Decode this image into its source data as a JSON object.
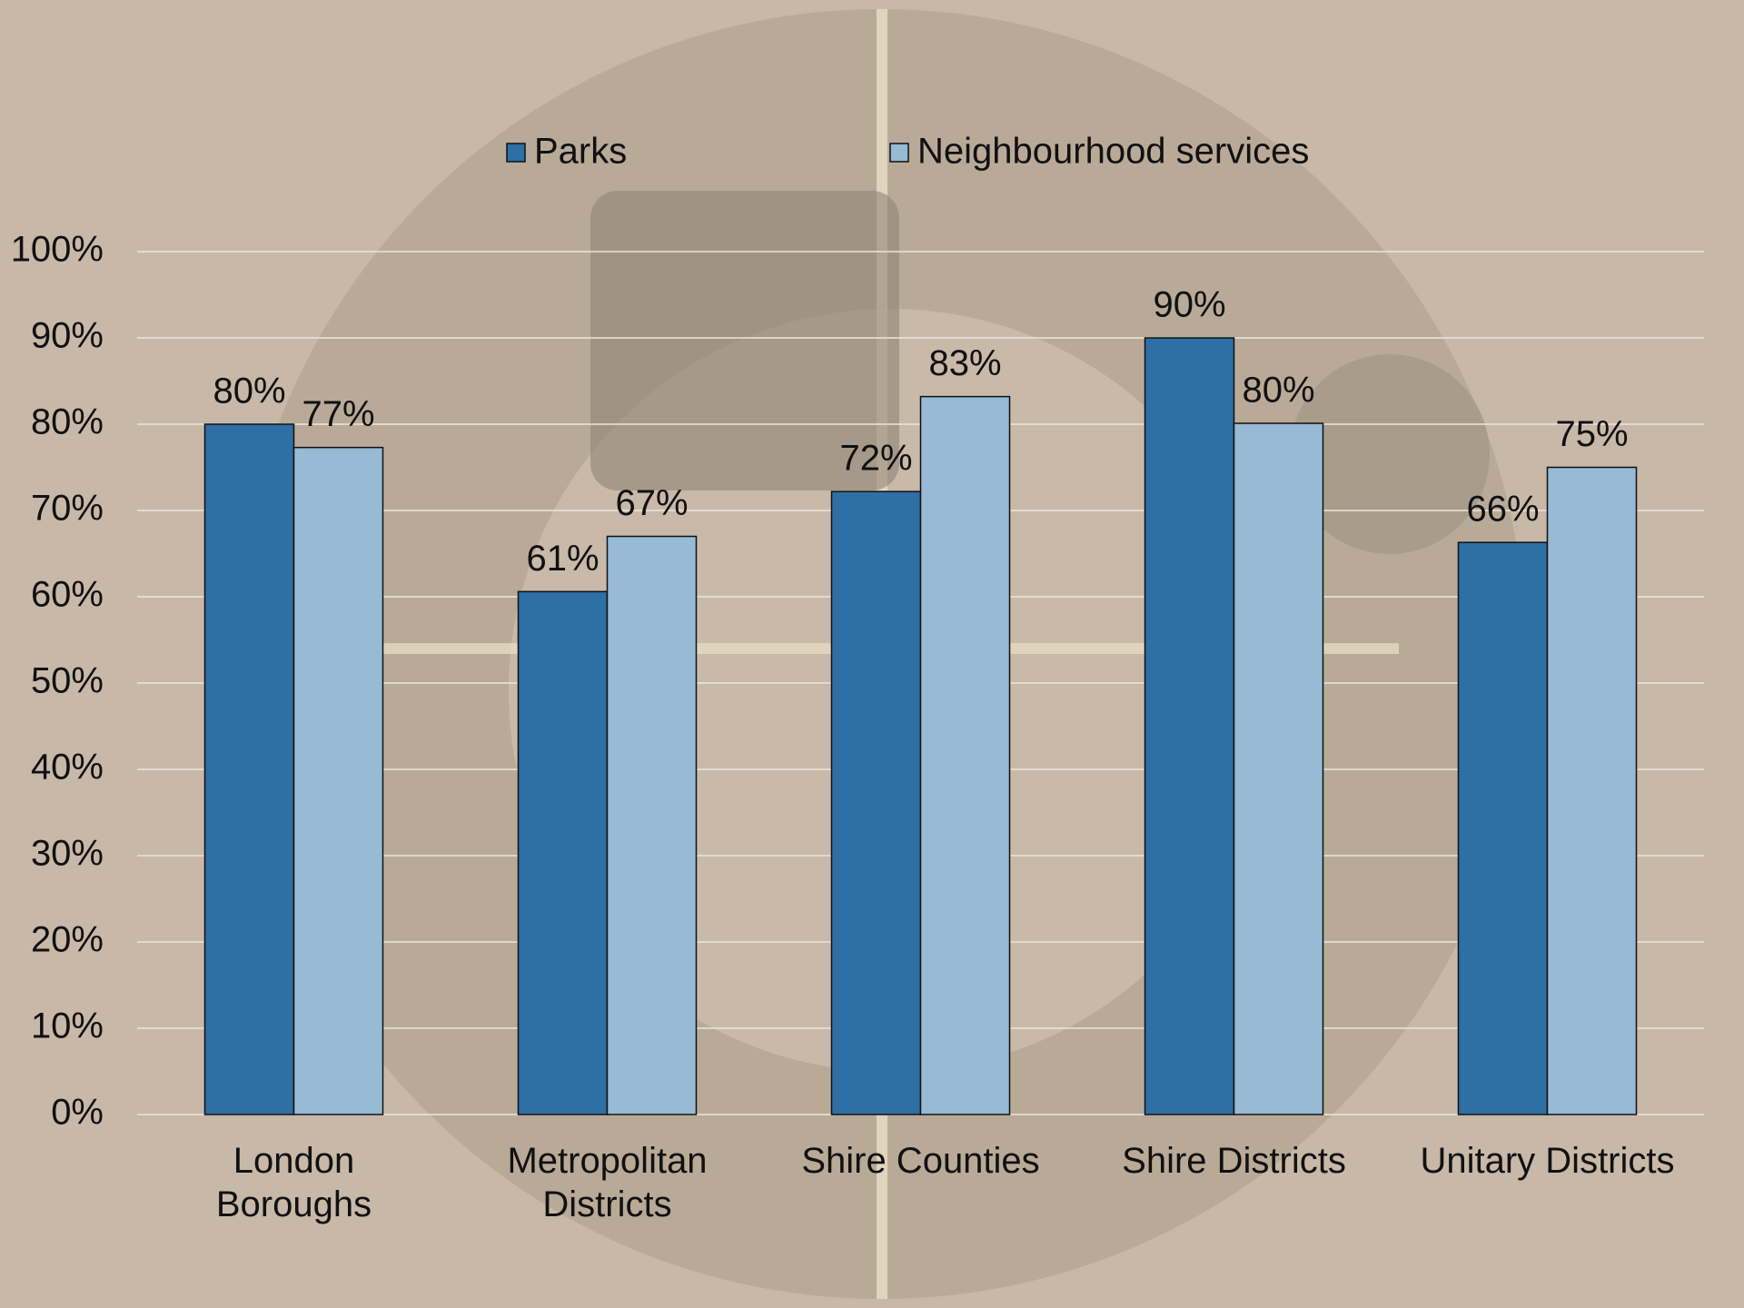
{
  "chart_data": {
    "type": "bar",
    "categories": [
      "London Boroughs",
      "Metropolitan Districts",
      "Shire Counties",
      "Shire Districts",
      "Unitary Districts"
    ],
    "series": [
      {
        "name": "Parks",
        "color": "#2e6fa5",
        "values": [
          80,
          60.6,
          72.2,
          90,
          66.3
        ],
        "value_labels": [
          "80%",
          "61%",
          "72%",
          "90%",
          "66%"
        ]
      },
      {
        "name": "Neighbourhood services",
        "color": "#97bad5",
        "values": [
          77.3,
          67,
          83.2,
          80.1,
          75
        ],
        "value_labels": [
          "77%",
          "67%",
          "83%",
          "80%",
          "75%"
        ]
      }
    ],
    "ylim": [
      0,
      100
    ],
    "yticks": [
      {
        "value": 0,
        "label": "0%"
      },
      {
        "value": 10,
        "label": "10%"
      },
      {
        "value": 20,
        "label": "20%"
      },
      {
        "value": 30,
        "label": "30%"
      },
      {
        "value": 40,
        "label": "40%"
      },
      {
        "value": 50,
        "label": "50%"
      },
      {
        "value": 60,
        "label": "60%"
      },
      {
        "value": 70,
        "label": "70%"
      },
      {
        "value": 80,
        "label": "80%"
      },
      {
        "value": 90,
        "label": "90%"
      },
      {
        "value": 100,
        "label": "100%"
      }
    ],
    "grid": true,
    "legend": "top"
  }
}
